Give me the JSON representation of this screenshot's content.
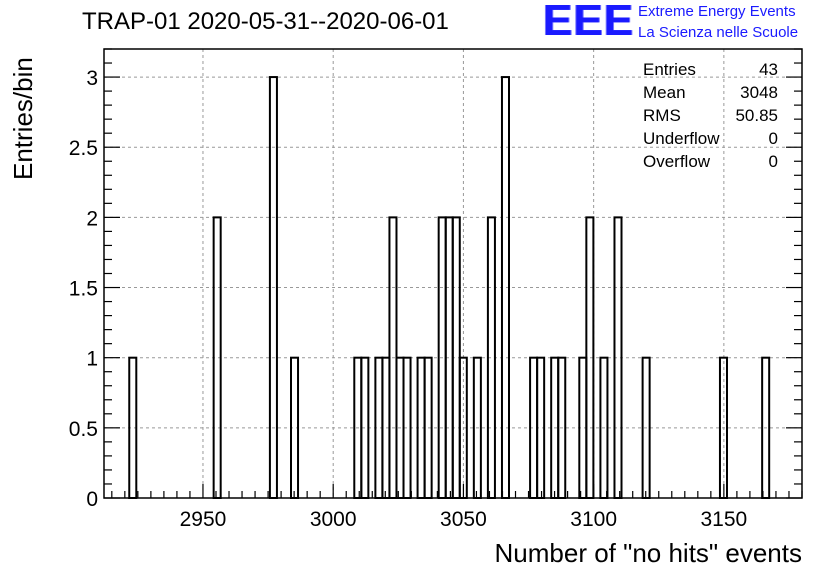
{
  "chart_data": {
    "type": "bar",
    "title": "TRAP-01 2020-05-31--2020-06-01",
    "xlabel": "Number of \"no hits\" events",
    "ylabel": "Entries/bin",
    "xlim": [
      2912,
      3180
    ],
    "ylim": [
      0,
      3.2
    ],
    "bin_width": 2.7,
    "grid": true,
    "x_ticks": [
      2950,
      3000,
      3050,
      3100,
      3150
    ],
    "y_ticks": [
      0,
      0.5,
      1,
      1.5,
      2,
      2.5,
      3
    ],
    "bins": [
      {
        "x": 2921.7,
        "y": 1
      },
      {
        "x": 2954.1,
        "y": 2
      },
      {
        "x": 2975.7,
        "y": 3
      },
      {
        "x": 2983.8,
        "y": 1
      },
      {
        "x": 3008.1,
        "y": 1
      },
      {
        "x": 3010.8,
        "y": 1
      },
      {
        "x": 3016.2,
        "y": 1
      },
      {
        "x": 3018.9,
        "y": 1
      },
      {
        "x": 3021.6,
        "y": 2
      },
      {
        "x": 3024.3,
        "y": 1
      },
      {
        "x": 3027.0,
        "y": 1
      },
      {
        "x": 3032.4,
        "y": 1
      },
      {
        "x": 3035.1,
        "y": 1
      },
      {
        "x": 3040.5,
        "y": 2
      },
      {
        "x": 3043.2,
        "y": 2
      },
      {
        "x": 3045.9,
        "y": 2
      },
      {
        "x": 3048.6,
        "y": 1
      },
      {
        "x": 3054.0,
        "y": 1
      },
      {
        "x": 3059.4,
        "y": 2
      },
      {
        "x": 3064.8,
        "y": 3
      },
      {
        "x": 3075.6,
        "y": 1
      },
      {
        "x": 3078.3,
        "y": 1
      },
      {
        "x": 3083.7,
        "y": 1
      },
      {
        "x": 3086.4,
        "y": 1
      },
      {
        "x": 3094.5,
        "y": 1
      },
      {
        "x": 3097.2,
        "y": 2
      },
      {
        "x": 3102.6,
        "y": 1
      },
      {
        "x": 3108.0,
        "y": 2
      },
      {
        "x": 3118.8,
        "y": 1
      },
      {
        "x": 3148.5,
        "y": 1
      },
      {
        "x": 3164.7,
        "y": 1
      }
    ]
  },
  "stats": [
    {
      "label": "Entries",
      "value": "43"
    },
    {
      "label": "Mean",
      "value": "3048"
    },
    {
      "label": "RMS",
      "value": "50.85"
    },
    {
      "label": "Underflow",
      "value": "0"
    },
    {
      "label": "Overflow",
      "value": "0"
    }
  ],
  "logo": {
    "mark": "EEE",
    "line1": "Extreme Energy Events",
    "line2": "La Scienza nelle Scuole",
    "color": "#1a1aff"
  }
}
